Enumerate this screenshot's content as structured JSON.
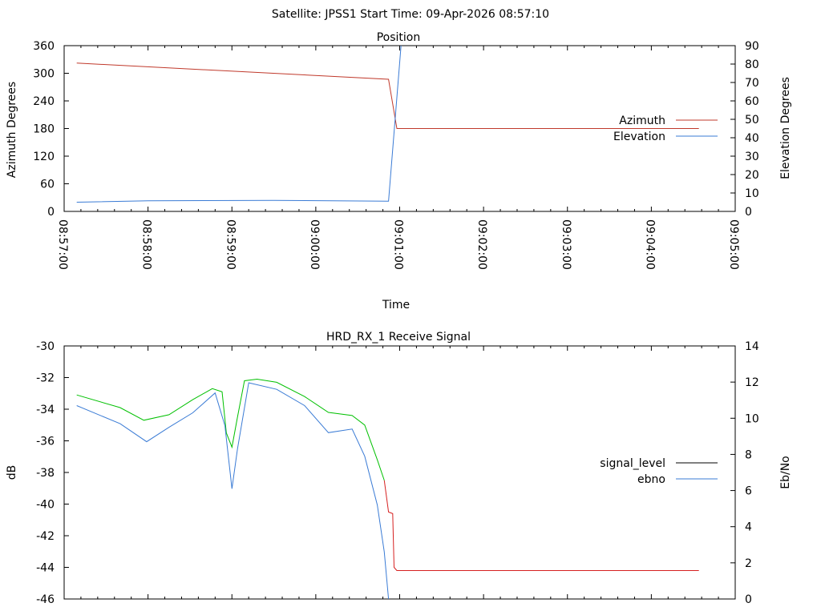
{
  "header": {
    "title": "Satellite: JPSS1    Start Time: 09-Apr-2026 08:57:10"
  },
  "colors": {
    "azimuth": "#c0392b",
    "elevation": "#3a7bd5",
    "signal_level": "#00c000",
    "signal_low": "#d62020",
    "ebno": "#3a7bd5"
  },
  "chart_data": [
    {
      "type": "line",
      "title": "Position",
      "xlabel": "Time",
      "ylabel": "Azimuth Degrees",
      "y2label": "Elevation Degrees",
      "x_unit": "seconds after 08:57:00",
      "xlim": [
        0,
        480
      ],
      "ylim": [
        0,
        360
      ],
      "y2lim": [
        0,
        90
      ],
      "xticks": [
        "08:57:00",
        "08:58:00",
        "08:59:00",
        "09:00:00",
        "09:01:00",
        "09:02:00",
        "09:03:00",
        "09:04:00",
        "09:05:00"
      ],
      "yticks": [
        "0",
        "60",
        "120",
        "180",
        "240",
        "300",
        "360"
      ],
      "y2ticks": [
        "0",
        "10",
        "20",
        "30",
        "40",
        "50",
        "60",
        "70",
        "80",
        "90"
      ],
      "legend_position": "right",
      "series": [
        {
          "name": "Azimuth",
          "axis": "y",
          "color_key": "azimuth",
          "x": [
            9,
            232,
            238,
            454
          ],
          "y": [
            322,
            287,
            180,
            180
          ]
        },
        {
          "name": "Elevation",
          "axis": "y2",
          "color_key": "elevation",
          "x": [
            9,
            60,
            150,
            232,
            241
          ],
          "y": [
            5,
            5.8,
            6,
            5.5,
            90
          ]
        }
      ]
    },
    {
      "type": "line",
      "title": "HRD_RX_1 Receive Signal",
      "ylabel": "dB",
      "y2label": "Eb/No",
      "x_unit": "seconds after 08:57:00",
      "xlim": [
        0,
        480
      ],
      "ylim": [
        -46,
        -30
      ],
      "y2lim": [
        0,
        14
      ],
      "yticks": [
        "-30",
        "-32",
        "-34",
        "-36",
        "-38",
        "-40",
        "-42",
        "-44",
        "-46"
      ],
      "y2ticks": [
        "0",
        "2",
        "4",
        "6",
        "8",
        "10",
        "12",
        "14"
      ],
      "legend_position": "right",
      "series": [
        {
          "name": "signal_level",
          "axis": "y",
          "color_key": "signal_level",
          "x": [
            9,
            40,
            57,
            75,
            92,
            106,
            113,
            116,
            120,
            124,
            129,
            138,
            152,
            172,
            189,
            206,
            215,
            224,
            229
          ],
          "y": [
            -33.1,
            -33.9,
            -34.7,
            -34.35,
            -33.4,
            -32.7,
            -32.9,
            -35.5,
            -36.4,
            -34.5,
            -32.2,
            -32.1,
            -32.3,
            -33.2,
            -34.2,
            -34.4,
            -35,
            -37.2,
            -38.5
          ]
        },
        {
          "name": "",
          "axis": "y",
          "color_key": "signal_low",
          "legend": false,
          "x": [
            229,
            232,
            235,
            236,
            238,
            454
          ],
          "y": [
            -38.5,
            -40.5,
            -40.6,
            -44,
            -44.2,
            -44.2
          ]
        },
        {
          "name": "ebno",
          "axis": "y2",
          "color_key": "ebno",
          "x": [
            9,
            40,
            59,
            75,
            92,
            108,
            115,
            120,
            124,
            132,
            152,
            172,
            189,
            206,
            215,
            224,
            229,
            232
          ],
          "y": [
            10.7,
            9.7,
            8.7,
            9.5,
            10.3,
            11.4,
            9.6,
            6.1,
            8.3,
            11.96,
            11.6,
            10.7,
            9.2,
            9.4,
            7.9,
            5.2,
            2.6,
            0
          ]
        }
      ]
    }
  ]
}
